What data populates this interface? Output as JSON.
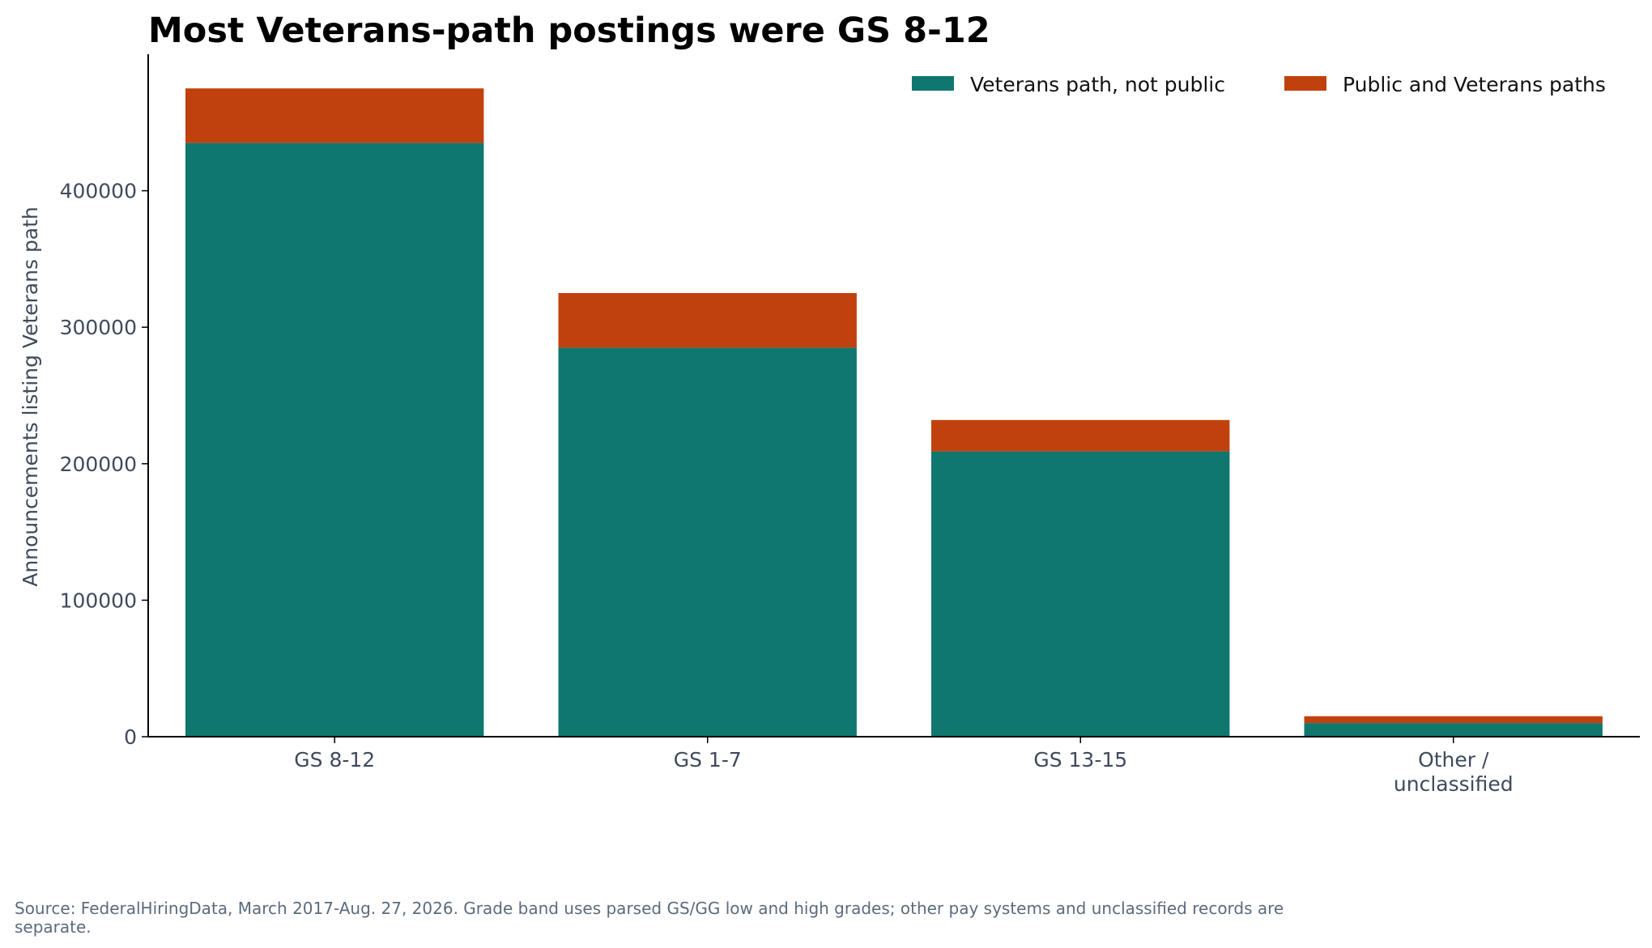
{
  "chart_data": {
    "type": "bar",
    "stacked": true,
    "title": "Most Veterans-path postings were GS 8-12",
    "xlabel": "",
    "ylabel": "Announcements listing Veterans path",
    "categories": [
      [
        "GS 8-12"
      ],
      [
        "GS 1-7"
      ],
      [
        "GS 13-15"
      ],
      [
        "Other /",
        "unclassified"
      ]
    ],
    "series": [
      {
        "name": "Veterans path, not public",
        "color": "#10776f",
        "values": [
          435000,
          285000,
          209000,
          10000
        ]
      },
      {
        "name": "Public and Veterans paths",
        "color": "#c1410e",
        "values": [
          40000,
          40000,
          23000,
          5000
        ]
      }
    ],
    "ylim": [
      0,
      500000
    ],
    "yticks": [
      "0",
      "100000",
      "200000",
      "300000",
      "400000"
    ],
    "ytick_values": [
      0,
      100000,
      200000,
      300000,
      400000
    ],
    "grid": false,
    "legend_position": "top-right"
  },
  "source": {
    "line1": "Source: FederalHiringData, March 2017-Aug. 27, 2026. Grade band uses parsed GS/GG low and high grades; other pay systems and unclassified records are",
    "line2": "separate."
  },
  "colors": {
    "axis": "#000000",
    "tick_text": "#3f4a5c",
    "note_text": "#5b6b7d"
  }
}
